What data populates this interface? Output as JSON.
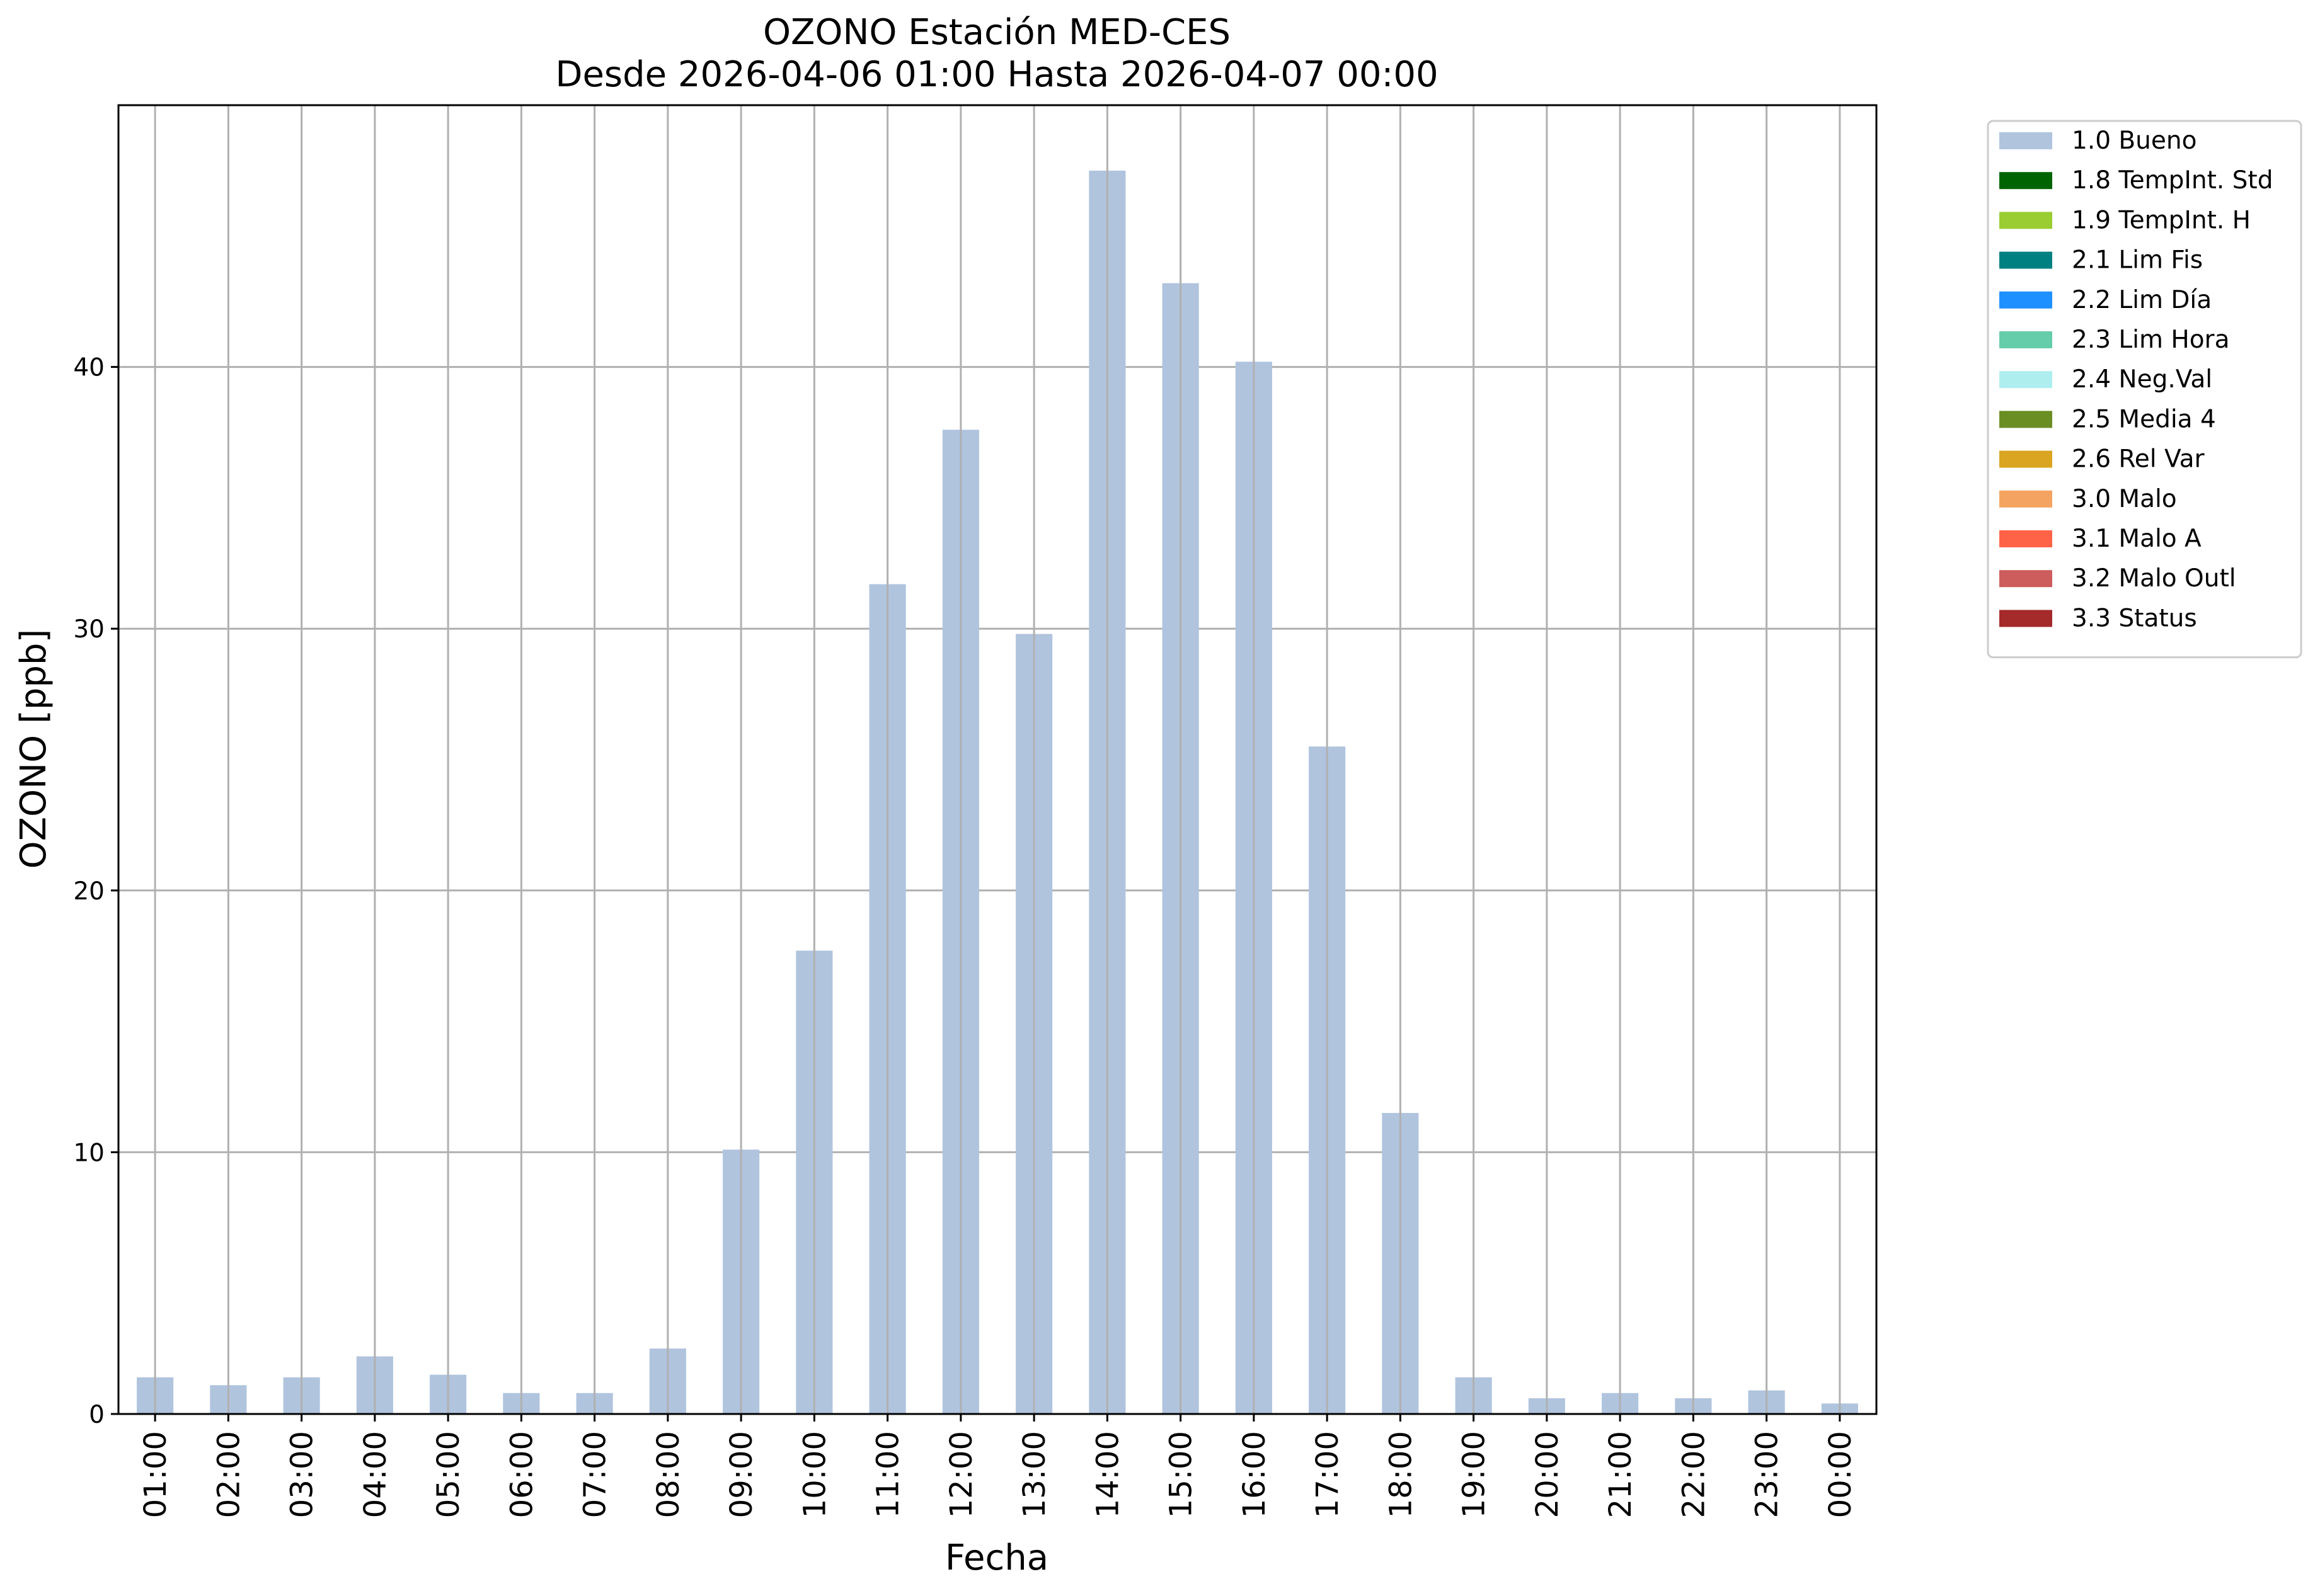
{
  "chart_data": {
    "type": "bar",
    "title": "OZONO Estación MED-CES",
    "subtitle": "Desde 2026-04-06 01:00 Hasta 2026-04-07 00:00",
    "xlabel": "Fecha",
    "ylabel": "OZONO [ppb]",
    "ylim": [
      0,
      50
    ],
    "yticks": [
      0,
      10,
      20,
      30,
      40
    ],
    "grid": true,
    "categories": [
      "01:00",
      "02:00",
      "03:00",
      "04:00",
      "05:00",
      "06:00",
      "07:00",
      "08:00",
      "09:00",
      "10:00",
      "11:00",
      "12:00",
      "13:00",
      "14:00",
      "15:00",
      "16:00",
      "17:00",
      "18:00",
      "19:00",
      "20:00",
      "21:00",
      "22:00",
      "23:00",
      "00:00"
    ],
    "series": [
      {
        "name": "1.0 Bueno",
        "color": "#b0c4de",
        "values": [
          1.4,
          1.1,
          1.4,
          2.2,
          1.5,
          0.8,
          0.8,
          2.5,
          10.1,
          17.7,
          31.7,
          37.6,
          29.8,
          47.5,
          43.2,
          40.2,
          25.5,
          11.5,
          1.4,
          0.6,
          0.8,
          0.6,
          0.9,
          0.4
        ]
      }
    ],
    "legend": {
      "placement": "outside-top-right",
      "entries": [
        {
          "label": "1.0 Bueno",
          "color": "#b0c4de"
        },
        {
          "label": "1.8 TempInt. Std",
          "color": "#006400"
        },
        {
          "label": "1.9 TempInt. H",
          "color": "#9acd32"
        },
        {
          "label": "2.1 Lim Fis",
          "color": "#008080"
        },
        {
          "label": "2.2 Lim Día",
          "color": "#1e90ff"
        },
        {
          "label": "2.3 Lim Hora",
          "color": "#66cdaa"
        },
        {
          "label": "2.4 Neg.Val",
          "color": "#afeeee"
        },
        {
          "label": "2.5 Media 4",
          "color": "#6b8e23"
        },
        {
          "label": "2.6 Rel Var",
          "color": "#daa520"
        },
        {
          "label": "3.0 Malo",
          "color": "#f4a460"
        },
        {
          "label": "3.1 Malo A",
          "color": "#ff6347"
        },
        {
          "label": "3.2 Malo Outl",
          "color": "#cd5c5c"
        },
        {
          "label": "3.3 Status",
          "color": "#a52a2a"
        }
      ]
    }
  }
}
